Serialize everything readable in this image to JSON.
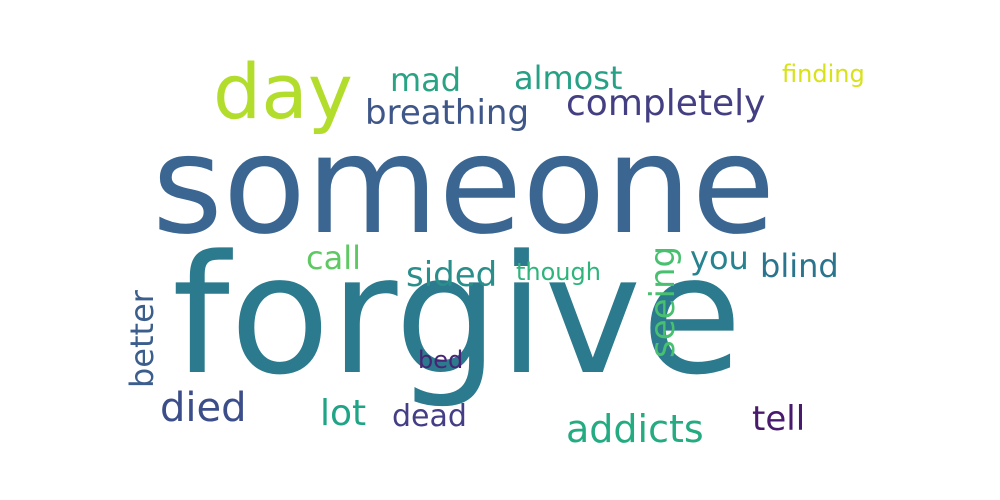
{
  "words": [
    {
      "text": "someone",
      "color": "#3b6692"
    },
    {
      "text": "forgive",
      "color": "#2b7a8d"
    },
    {
      "text": "day",
      "color": "#b2dd2d"
    },
    {
      "text": "completely",
      "color": "#433f82"
    },
    {
      "text": "breathing",
      "color": "#3f5688"
    },
    {
      "text": "mad",
      "color": "#29a383"
    },
    {
      "text": "almost",
      "color": "#27a186"
    },
    {
      "text": "finding",
      "color": "#d8e219"
    },
    {
      "text": "call",
      "color": "#5ec962"
    },
    {
      "text": "sided",
      "color": "#2a8e8b"
    },
    {
      "text": "though",
      "color": "#2fb47c"
    },
    {
      "text": "seeing",
      "color": "#48c06f"
    },
    {
      "text": "you",
      "color": "#26838f"
    },
    {
      "text": "blind",
      "color": "#2b748e"
    },
    {
      "text": "better",
      "color": "#3c5e8d"
    },
    {
      "text": "bed",
      "color": "#482475"
    },
    {
      "text": "died",
      "color": "#3c4e8a"
    },
    {
      "text": "lot",
      "color": "#20a486"
    },
    {
      "text": "dead",
      "color": "#433e85"
    },
    {
      "text": "addicts",
      "color": "#25ab82"
    },
    {
      "text": "tell",
      "color": "#481a6c"
    }
  ]
}
